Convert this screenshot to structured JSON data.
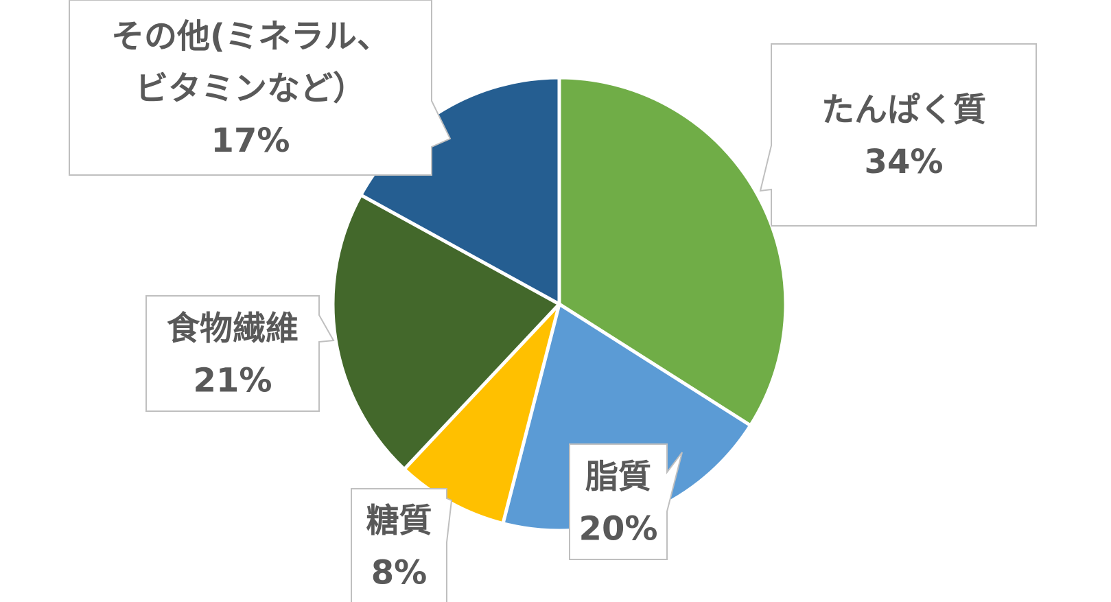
{
  "chart_data": {
    "type": "pie",
    "start_angle_deg": 0,
    "direction": "clockwise",
    "slices": [
      {
        "label": "たんぱく質",
        "value": 34,
        "value_label": "34%",
        "color": "#70AD47"
      },
      {
        "label": "脂質",
        "value": 20,
        "value_label": "20%",
        "color": "#5B9BD5"
      },
      {
        "label": "糖質",
        "value": 8,
        "value_label": "8%",
        "color": "#FFC000"
      },
      {
        "label": "食物繊維",
        "value": 21,
        "value_label": "21%",
        "color": "#43682B"
      },
      {
        "label": "その他(ミネラル、ビタミンなど）",
        "label_lines": [
          "その他(ミネラル、",
          "ビタミンなど）"
        ],
        "value": 17,
        "value_label": "17%",
        "color": "#255E91"
      }
    ],
    "legend": "none",
    "data_labels": "callouts"
  }
}
